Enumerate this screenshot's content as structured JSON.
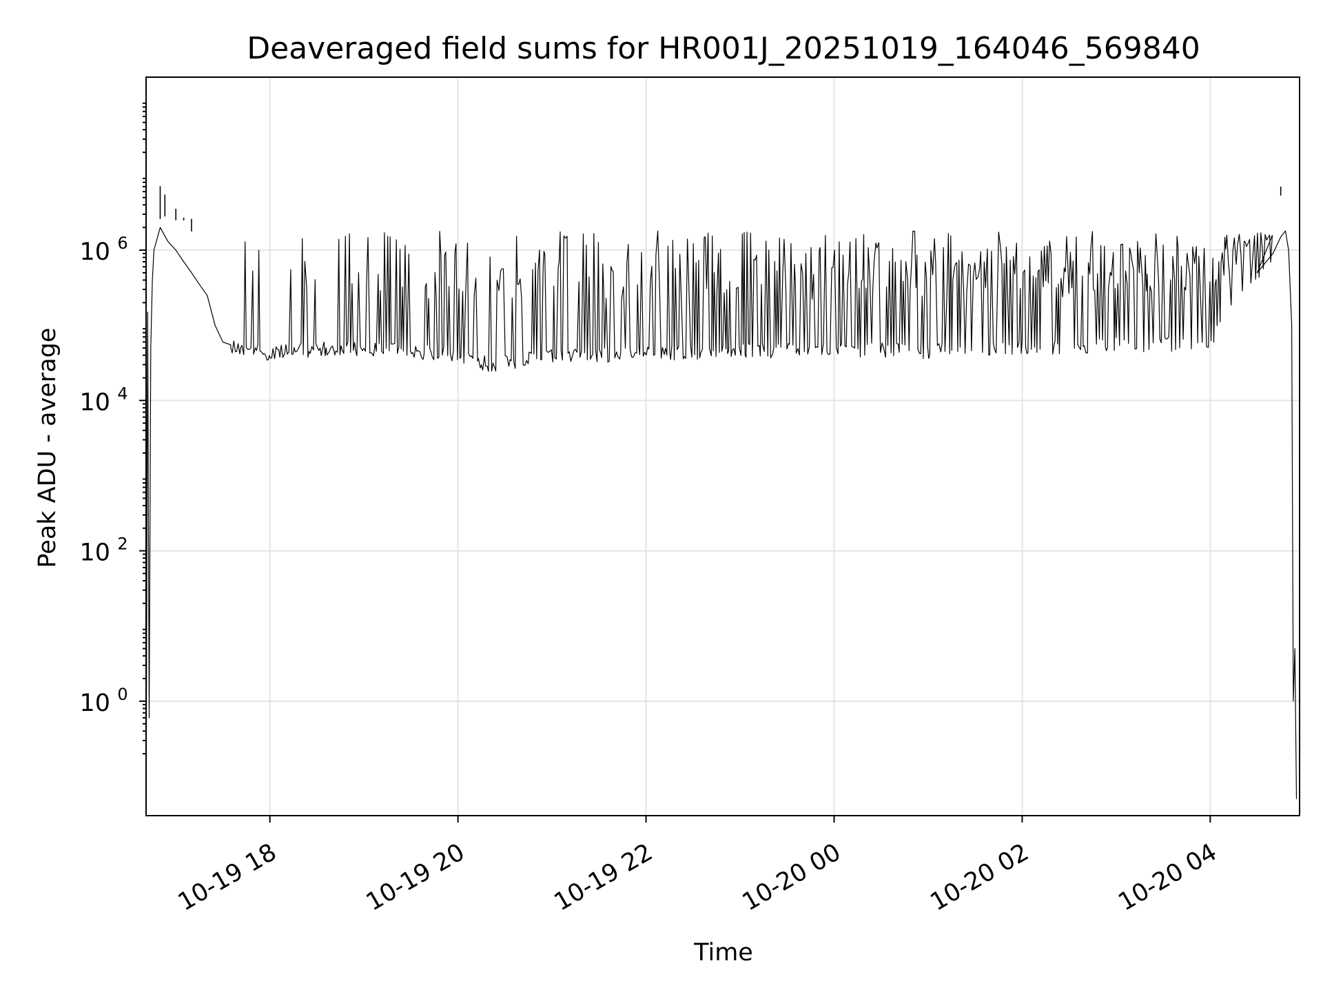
{
  "chart_data": {
    "type": "line",
    "title": "Deaveraged field sums for HR001J_20251019_164046_569840",
    "xlabel": "Time",
    "ylabel": "Peak ADU - average",
    "x_scale": "time",
    "y_scale": "log",
    "xlim": [
      "2025-10-19 16:41",
      "2025-10-20 04:57"
    ],
    "ylim": [
      0.03,
      200000000
    ],
    "grid": true,
    "legend": "none",
    "line_color": "#000000",
    "x_ticks": [
      "10-19 18",
      "10-19 20",
      "10-19 22",
      "10-20 00",
      "10-20 02",
      "10-20 04"
    ],
    "x_tick_times": [
      "2025-10-19 18:00",
      "2025-10-19 20:00",
      "2025-10-19 22:00",
      "2025-10-20 00:00",
      "2025-10-20 02:00",
      "2025-10-20 04:00"
    ],
    "y_ticks": [
      {
        "value": 1,
        "base": "10",
        "exp": "0"
      },
      {
        "value": 100,
        "base": "10",
        "exp": "2"
      },
      {
        "value": 10000,
        "base": "10",
        "exp": "4"
      },
      {
        "value": 1000000,
        "base": "10",
        "exp": "6"
      }
    ],
    "series": [
      {
        "x": [
          "2025-10-19 16:41",
          "2025-10-19 16:42",
          "2025-10-19 16:43",
          "2025-10-19 16:44",
          "2025-10-19 16:45",
          "2025-10-19 16:46",
          "2025-10-19 16:50",
          "2025-10-19 16:55",
          "2025-10-19 17:00",
          "2025-10-19 17:05",
          "2025-10-19 17:10",
          "2025-10-19 17:15",
          "2025-10-19 17:20",
          "2025-10-19 17:25",
          "2025-10-19 17:30",
          "2025-10-19 17:35",
          "2025-10-19 17:40",
          "2025-10-19 17:50",
          "2025-10-19 18:00",
          "2025-10-19 18:30",
          "2025-10-19 19:00",
          "2025-10-19 19:30",
          "2025-10-19 20:00",
          "2025-10-19 20:20",
          "2025-10-19 21:00",
          "2025-10-19 22:00",
          "2025-10-19 23:00",
          "2025-10-20 00:00",
          "2025-10-20 01:00",
          "2025-10-20 02:00",
          "2025-10-20 03:00",
          "2025-10-20 03:30",
          "2025-10-20 04:00",
          "2025-10-20 04:30",
          "2025-10-20 04:40",
          "2025-10-20 04:45",
          "2025-10-20 04:48",
          "2025-10-20 04:50",
          "2025-10-20 04:52",
          "2025-10-20 04:53",
          "2025-10-20 04:54",
          "2025-10-20 04:55"
        ],
        "y": [
          0.03,
          150000,
          0.6,
          50000,
          400000,
          1000000,
          2000000,
          1300000,
          1000000,
          700000,
          500000,
          350000,
          250000,
          100000,
          60000,
          55000,
          50000,
          45000,
          42000,
          48000,
          50000,
          45000,
          40000,
          30000,
          38000,
          42000,
          45000,
          48000,
          45000,
          50000,
          55000,
          55000,
          60000,
          500000,
          900000,
          1500000,
          1800000,
          1000000,
          100000,
          1,
          5,
          0.05
        ]
      },
      {
        "x": [
          "2025-10-19 16:50",
          "2025-10-19 16:53",
          "2025-10-19 17:00",
          "2025-10-19 17:05",
          "2025-10-19 17:10",
          "2025-10-20 04:45"
        ],
        "y": [
          2600000,
          2800000,
          2500000,
          2700000,
          2600000,
          7000000
        ]
      }
    ]
  }
}
